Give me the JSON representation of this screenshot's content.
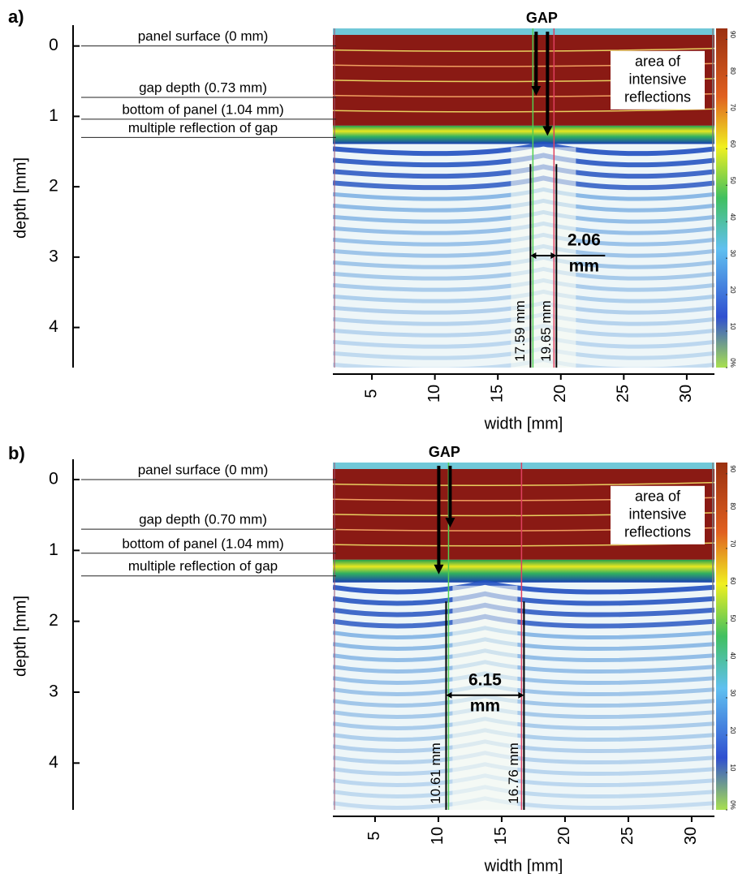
{
  "chart_data": [
    {
      "type": "ultrasound-scan",
      "panel_label": "a)",
      "ylabel": "depth [mm]",
      "xlabel": "width [mm]",
      "ylim": [
        -0.25,
        4.57
      ],
      "yticks": [
        0,
        1,
        2,
        3,
        4
      ],
      "xlim": [
        1.9,
        32.2
      ],
      "xticks": [
        5,
        10,
        15,
        20,
        25,
        30
      ],
      "layers": [
        {
          "label": "panel surface (0 mm)",
          "depth": 0
        },
        {
          "label": "gap depth (0.73 mm)",
          "depth": 0.73
        },
        {
          "label": "bottom of panel (1.04 mm)",
          "depth": 1.04
        },
        {
          "label": "multiple reflection of gap",
          "depth": 1.3
        }
      ],
      "markers": [
        {
          "x": 17.59,
          "label": "17.59 mm"
        },
        {
          "x": 19.65,
          "label": "19.65 mm"
        }
      ],
      "gap_width": 2.06,
      "gap_width_unit": "mm",
      "gap_label": "GAP",
      "region_label": [
        "area of",
        "intensive",
        "reflections"
      ],
      "colorbar": {
        "lim": [
          0,
          93
        ],
        "ticks": [
          {
            "value": 0,
            "label": "0%"
          },
          10,
          20,
          30,
          40,
          50,
          60,
          70,
          80,
          90
        ]
      }
    },
    {
      "type": "ultrasound-scan",
      "panel_label": "b)",
      "ylabel": "depth [mm]",
      "xlabel": "width [mm]",
      "ylim": [
        -0.24,
        4.66
      ],
      "yticks": [
        0,
        1,
        2,
        3,
        4
      ],
      "xlim": [
        1.67,
        31.8
      ],
      "xticks": [
        5,
        10,
        15,
        20,
        25,
        30
      ],
      "layers": [
        {
          "label": "panel surface (0 mm)",
          "depth": 0
        },
        {
          "label": "gap depth (0.70 mm)",
          "depth": 0.7
        },
        {
          "label": "bottom of panel (1.04 mm)",
          "depth": 1.04
        },
        {
          "label": "multiple reflection of gap",
          "depth": 1.36
        }
      ],
      "markers": [
        {
          "x": 10.61,
          "label": "10.61 mm"
        },
        {
          "x": 16.76,
          "label": "16.76 mm"
        }
      ],
      "gap_width": 6.15,
      "gap_width_unit": "mm",
      "gap_label": "GAP",
      "region_label": [
        "area of",
        "intensive",
        "reflections"
      ],
      "colorbar": {
        "lim": [
          0,
          93
        ],
        "ticks": [
          {
            "value": 0,
            "label": "0%"
          },
          10,
          20,
          30,
          40,
          50,
          60,
          70,
          80,
          90
        ]
      }
    }
  ]
}
